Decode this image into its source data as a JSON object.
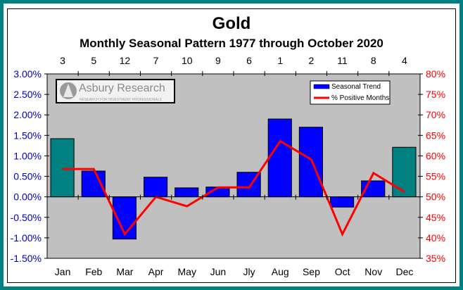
{
  "chart_data": {
    "type": "bar+line",
    "title": "Gold",
    "subtitle": "Monthly Seasonal Pattern 1977 through October 2020",
    "categories": [
      "Jan",
      "Feb",
      "Mar",
      "Apr",
      "May",
      "Jun",
      "Jly",
      "Aug",
      "Sep",
      "Oct",
      "Nov",
      "Dec"
    ],
    "ranks": [
      "3",
      "5",
      "12",
      "7",
      "10",
      "9",
      "6",
      "1",
      "2",
      "11",
      "8",
      "4"
    ],
    "series": [
      {
        "name": "Seasonal Trend",
        "type": "bar",
        "axis": "left",
        "color": "#0000ff",
        "highlight_color": "#008080",
        "highlighted": [
          "Jan",
          "Dec"
        ],
        "values": [
          1.42,
          0.63,
          -1.03,
          0.48,
          0.22,
          0.24,
          0.6,
          1.9,
          1.7,
          -0.25,
          0.39,
          1.21
        ]
      },
      {
        "name": "% Positive Months",
        "type": "line",
        "axis": "right",
        "color": "#ff0000",
        "values": [
          56.8,
          56.8,
          40.9,
          50.0,
          47.7,
          52.3,
          52.3,
          63.6,
          59.1,
          40.9,
          55.8,
          51.2
        ]
      }
    ],
    "left_axis": {
      "range": [
        -1.5,
        3.0
      ],
      "ticks": [
        "3.00%",
        "2.50%",
        "2.00%",
        "1.50%",
        "1.00%",
        "0.50%",
        "0.00%",
        "-0.50%",
        "-1.00%",
        "-1.50%"
      ],
      "color": "#0000cc"
    },
    "right_axis": {
      "range": [
        35,
        80
      ],
      "ticks": [
        "80%",
        "75%",
        "70%",
        "65%",
        "60%",
        "55%",
        "50%",
        "45%",
        "40%",
        "35%"
      ],
      "color": "#ff0000"
    },
    "grid": false,
    "legend_placement": "top-right",
    "plot_background": "#c0c0c0",
    "logo": {
      "name": "Asbury Research",
      "tagline": "RESEARCH FOR INVESTMENT PROFESSIONALS"
    }
  }
}
